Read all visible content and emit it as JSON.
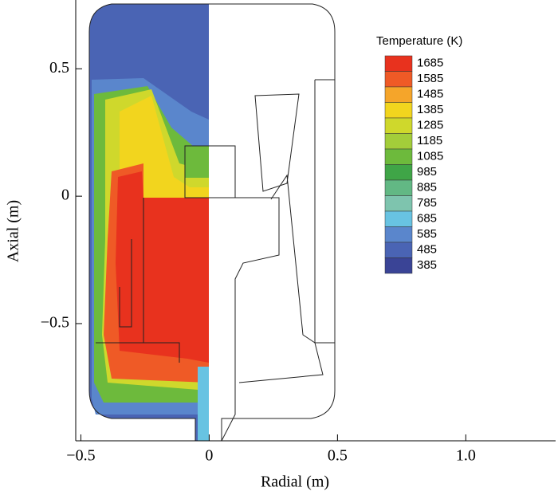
{
  "chart_data": {
    "type": "contour",
    "xlabel": "Radial (m)",
    "ylabel": "Axial (m)",
    "xlim": [
      -0.52,
      1.35
    ],
    "ylim": [
      -0.96,
      0.77
    ],
    "xticks": [
      {
        "value": -0.5,
        "label": "−0.5"
      },
      0,
      0.5,
      {
        "value": 1,
        "label": "1.0"
      }
    ],
    "yticks": [
      0.5,
      0,
      {
        "value": -0.5,
        "label": "−0.5"
      }
    ],
    "legend_title": "Temperature (K)",
    "levels": [
      1685,
      1585,
      1485,
      1385,
      1285,
      1185,
      1085,
      985,
      885,
      785,
      685,
      585,
      485,
      385
    ],
    "colors": [
      "#e8321e",
      "#ef5a26",
      "#f5a52a",
      "#f2d51e",
      "#cfd82c",
      "#a3cd3a",
      "#6dba3c",
      "#3fa547",
      "#62b884",
      "#7ec4ae",
      "#68c3e2",
      "#5a86cc",
      "#4a64b4",
      "#3a4496"
    ]
  }
}
